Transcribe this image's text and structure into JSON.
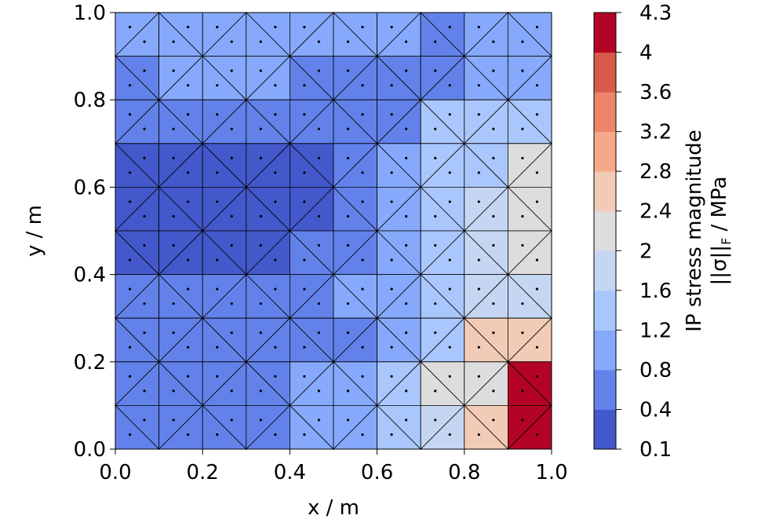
{
  "chart_data": {
    "type": "mesh",
    "xlabel": "x / m",
    "ylabel": "y / m",
    "xlim": [
      0,
      1
    ],
    "ylim": [
      0,
      1
    ],
    "xticks": [
      {
        "value": 0,
        "label": "0.0"
      },
      0.2,
      0.4,
      0.6,
      0.8,
      {
        "value": 1,
        "label": "1.0"
      }
    ],
    "yticks": [
      {
        "value": 0,
        "label": "0.0"
      },
      0.2,
      0.4,
      0.6,
      0.8,
      {
        "value": 1,
        "label": "1.0"
      }
    ],
    "z": [
      [
        0.9,
        0.9,
        1.0,
        1.0,
        1.0,
        1.1,
        1.1,
        0.7,
        0.8,
        0.9
      ],
      [
        0.7,
        0.8,
        0.8,
        0.9,
        0.7,
        0.6,
        0.7,
        0.7,
        0.8,
        1.0
      ],
      [
        0.6,
        0.5,
        0.5,
        0.6,
        0.5,
        0.6,
        0.7,
        1.2,
        1.3,
        1.5
      ],
      [
        0.35,
        0.3,
        0.3,
        0.3,
        0.35,
        0.6,
        0.8,
        1.3,
        1.5,
        2.1
      ],
      [
        0.3,
        0.3,
        0.3,
        0.3,
        0.35,
        0.6,
        0.9,
        1.3,
        1.6,
        2.2
      ],
      [
        0.3,
        0.3,
        0.3,
        0.3,
        0.5,
        0.7,
        0.9,
        1.3,
        1.7,
        2.1
      ],
      [
        0.5,
        0.5,
        0.4,
        0.5,
        0.6,
        0.8,
        1.0,
        1.3,
        1.7,
        1.8
      ],
      [
        0.6,
        0.6,
        0.6,
        0.6,
        0.7,
        0.6,
        1.0,
        1.4,
        2.6,
        2.6
      ],
      [
        0.6,
        0.6,
        0.6,
        0.7,
        0.8,
        1.0,
        1.2,
        2.0,
        2.2,
        4.1
      ],
      [
        0.6,
        0.6,
        0.6,
        0.7,
        0.9,
        1.1,
        1.4,
        1.8,
        2.5,
        4.1
      ]
    ],
    "levels": [
      0.1,
      0.4,
      0.8,
      1.2,
      1.6,
      2,
      2.4,
      2.8,
      3.2,
      3.6,
      4,
      4.3
    ],
    "colors": [
      "#4358cb",
      "#6282ea",
      "#86a9fc",
      "#aac7fd",
      "#c5d6f2",
      "#dddddd",
      "#f2cbb7",
      "#f6a98a",
      "#ee8468",
      "#d85a4a",
      "#b40426"
    ],
    "colorbar_label": [
      "IP stress magnitude",
      "||σ||",
      "F",
      " / MPa"
    ]
  }
}
